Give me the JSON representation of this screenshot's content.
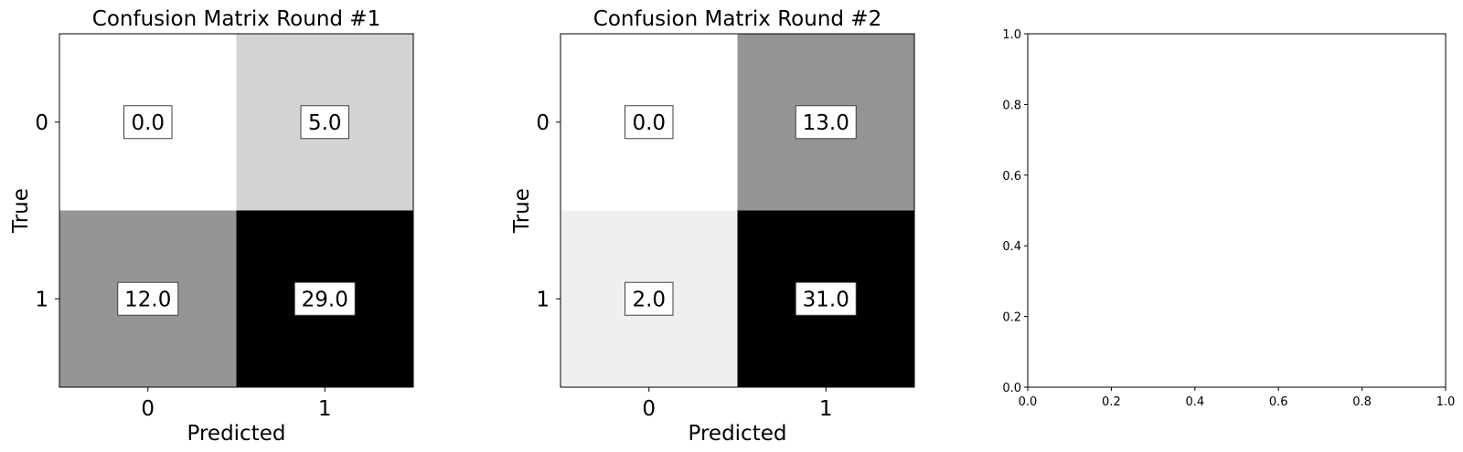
{
  "chart_data": [
    {
      "type": "heatmap",
      "title": "Confusion Matrix Round #1",
      "xlabel": "Predicted",
      "ylabel": "True",
      "x_ticks": [
        "0",
        "1"
      ],
      "y_ticks": [
        "0",
        "1"
      ],
      "colormap": "gray_r",
      "vmin": 0,
      "vmax": 29,
      "matrix": [
        [
          0.0,
          5.0
        ],
        [
          12.0,
          29.0
        ]
      ],
      "cell_labels": [
        [
          "0.0",
          "5.0"
        ],
        [
          "12.0",
          "29.0"
        ]
      ]
    },
    {
      "type": "heatmap",
      "title": "Confusion Matrix Round #2",
      "xlabel": "Predicted",
      "ylabel": "True",
      "x_ticks": [
        "0",
        "1"
      ],
      "y_ticks": [
        "0",
        "1"
      ],
      "colormap": "gray_r",
      "vmin": 0,
      "vmax": 31,
      "matrix": [
        [
          0.0,
          13.0
        ],
        [
          2.0,
          31.0
        ]
      ],
      "cell_labels": [
        [
          "0.0",
          "13.0"
        ],
        [
          "2.0",
          "31.0"
        ]
      ]
    },
    {
      "type": "scatter",
      "title": "",
      "xlabel": "",
      "ylabel": "",
      "xlim": [
        0.0,
        1.0
      ],
      "ylim": [
        0.0,
        1.0
      ],
      "x_ticks": [
        "0.0",
        "0.2",
        "0.4",
        "0.6",
        "0.8",
        "1.0"
      ],
      "y_ticks": [
        "0.0",
        "0.2",
        "0.4",
        "0.6",
        "0.8",
        "1.0"
      ],
      "series": []
    }
  ]
}
